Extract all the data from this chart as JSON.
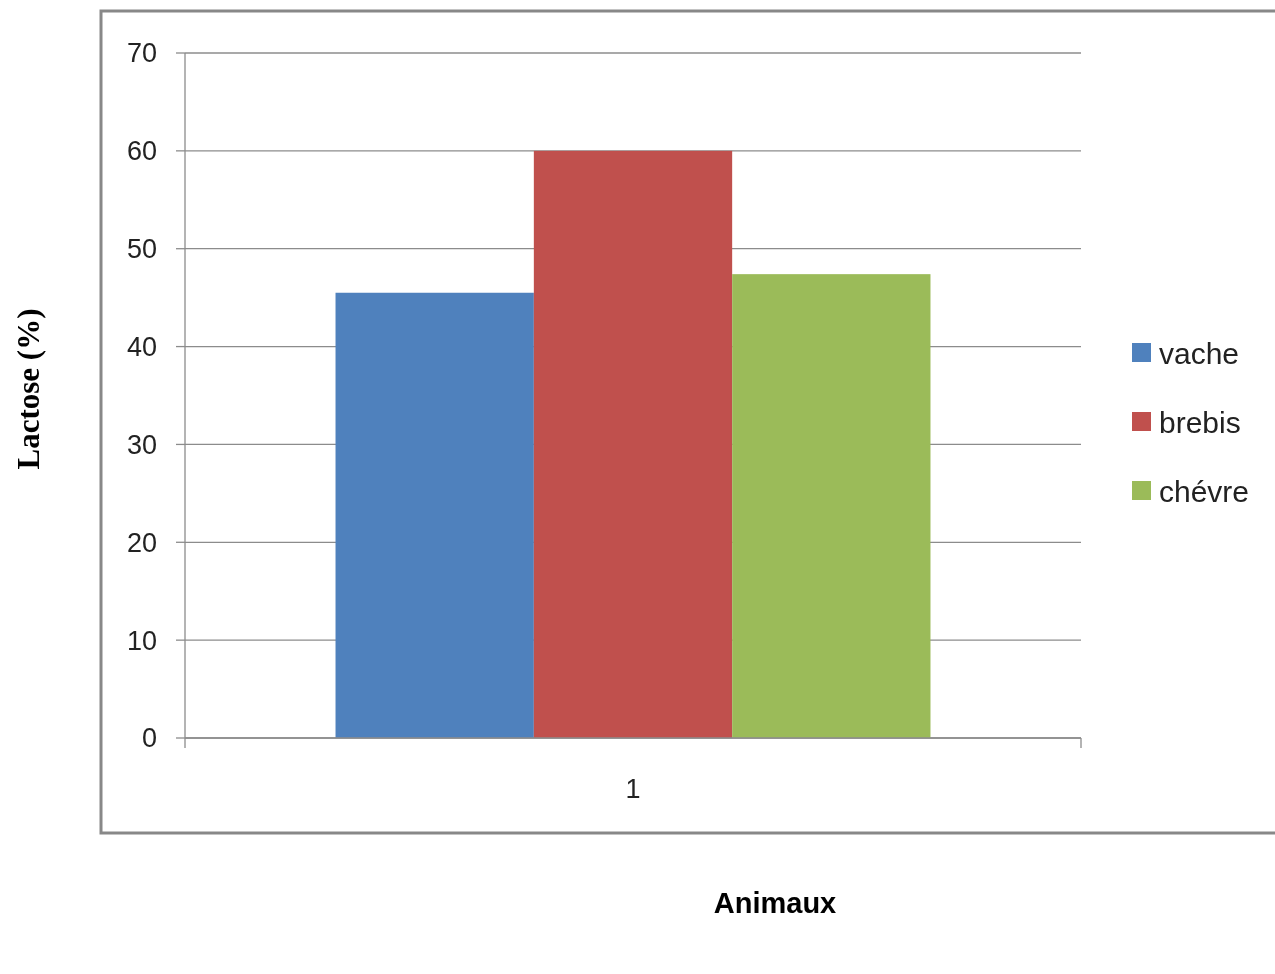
{
  "chart_data": {
    "type": "bar",
    "xlabel": "Animaux",
    "ylabel": "Lactose (%)",
    "categories": [
      "1"
    ],
    "series": [
      {
        "name": "vache",
        "color": "#4f81bd",
        "values": [
          45.5
        ]
      },
      {
        "name": "brebis",
        "color": "#c0504d",
        "values": [
          60
        ]
      },
      {
        "name": "chévre",
        "color": "#9bbb59",
        "values": [
          47.4
        ]
      }
    ],
    "ylim": [
      0,
      70
    ],
    "yticks": [
      0,
      10,
      20,
      30,
      40,
      50,
      60,
      70
    ],
    "grid": "y",
    "legend": "right"
  }
}
